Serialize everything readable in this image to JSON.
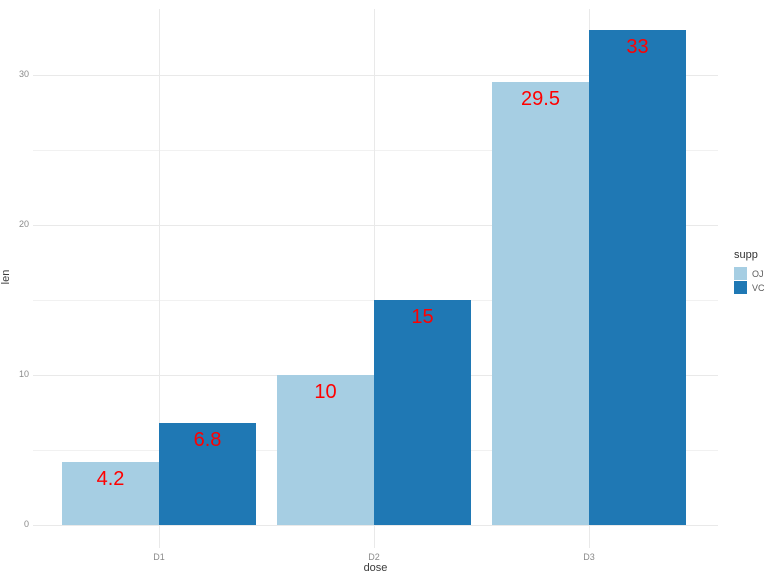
{
  "chart_data": {
    "type": "bar",
    "title": "",
    "categories": [
      "D1",
      "D2",
      "D3"
    ],
    "series": [
      {
        "name": "OJ",
        "color": "#A6CEE3",
        "values": [
          4.2,
          10,
          29.5
        ]
      },
      {
        "name": "VC",
        "color": "#1F78B4",
        "values": [
          6.8,
          15,
          33
        ]
      }
    ],
    "bar_labels": [
      [
        "4.2",
        "6.8"
      ],
      [
        "10",
        "15"
      ],
      [
        "29.5",
        "33"
      ]
    ],
    "bar_label_color": "#FF0000",
    "xlabel": "dose",
    "ylabel": "len",
    "ylim": [
      -1.6,
      34.4
    ],
    "y_major_ticks": [
      0,
      10,
      20,
      30
    ],
    "y_minor_ticks": [
      5,
      15,
      25
    ],
    "grid": "horizontal major+minor, vertical at category centers, light gray on white",
    "legend": {
      "title": "supp",
      "position": "right",
      "entries": [
        "OJ",
        "VC"
      ]
    }
  },
  "colors": {
    "background": "#ffffff",
    "grid_major": "#e9e9e9",
    "grid_minor": "#f1f1f1",
    "tick_label": "#8a8a8a",
    "axis_title": "#3c3c3c"
  }
}
